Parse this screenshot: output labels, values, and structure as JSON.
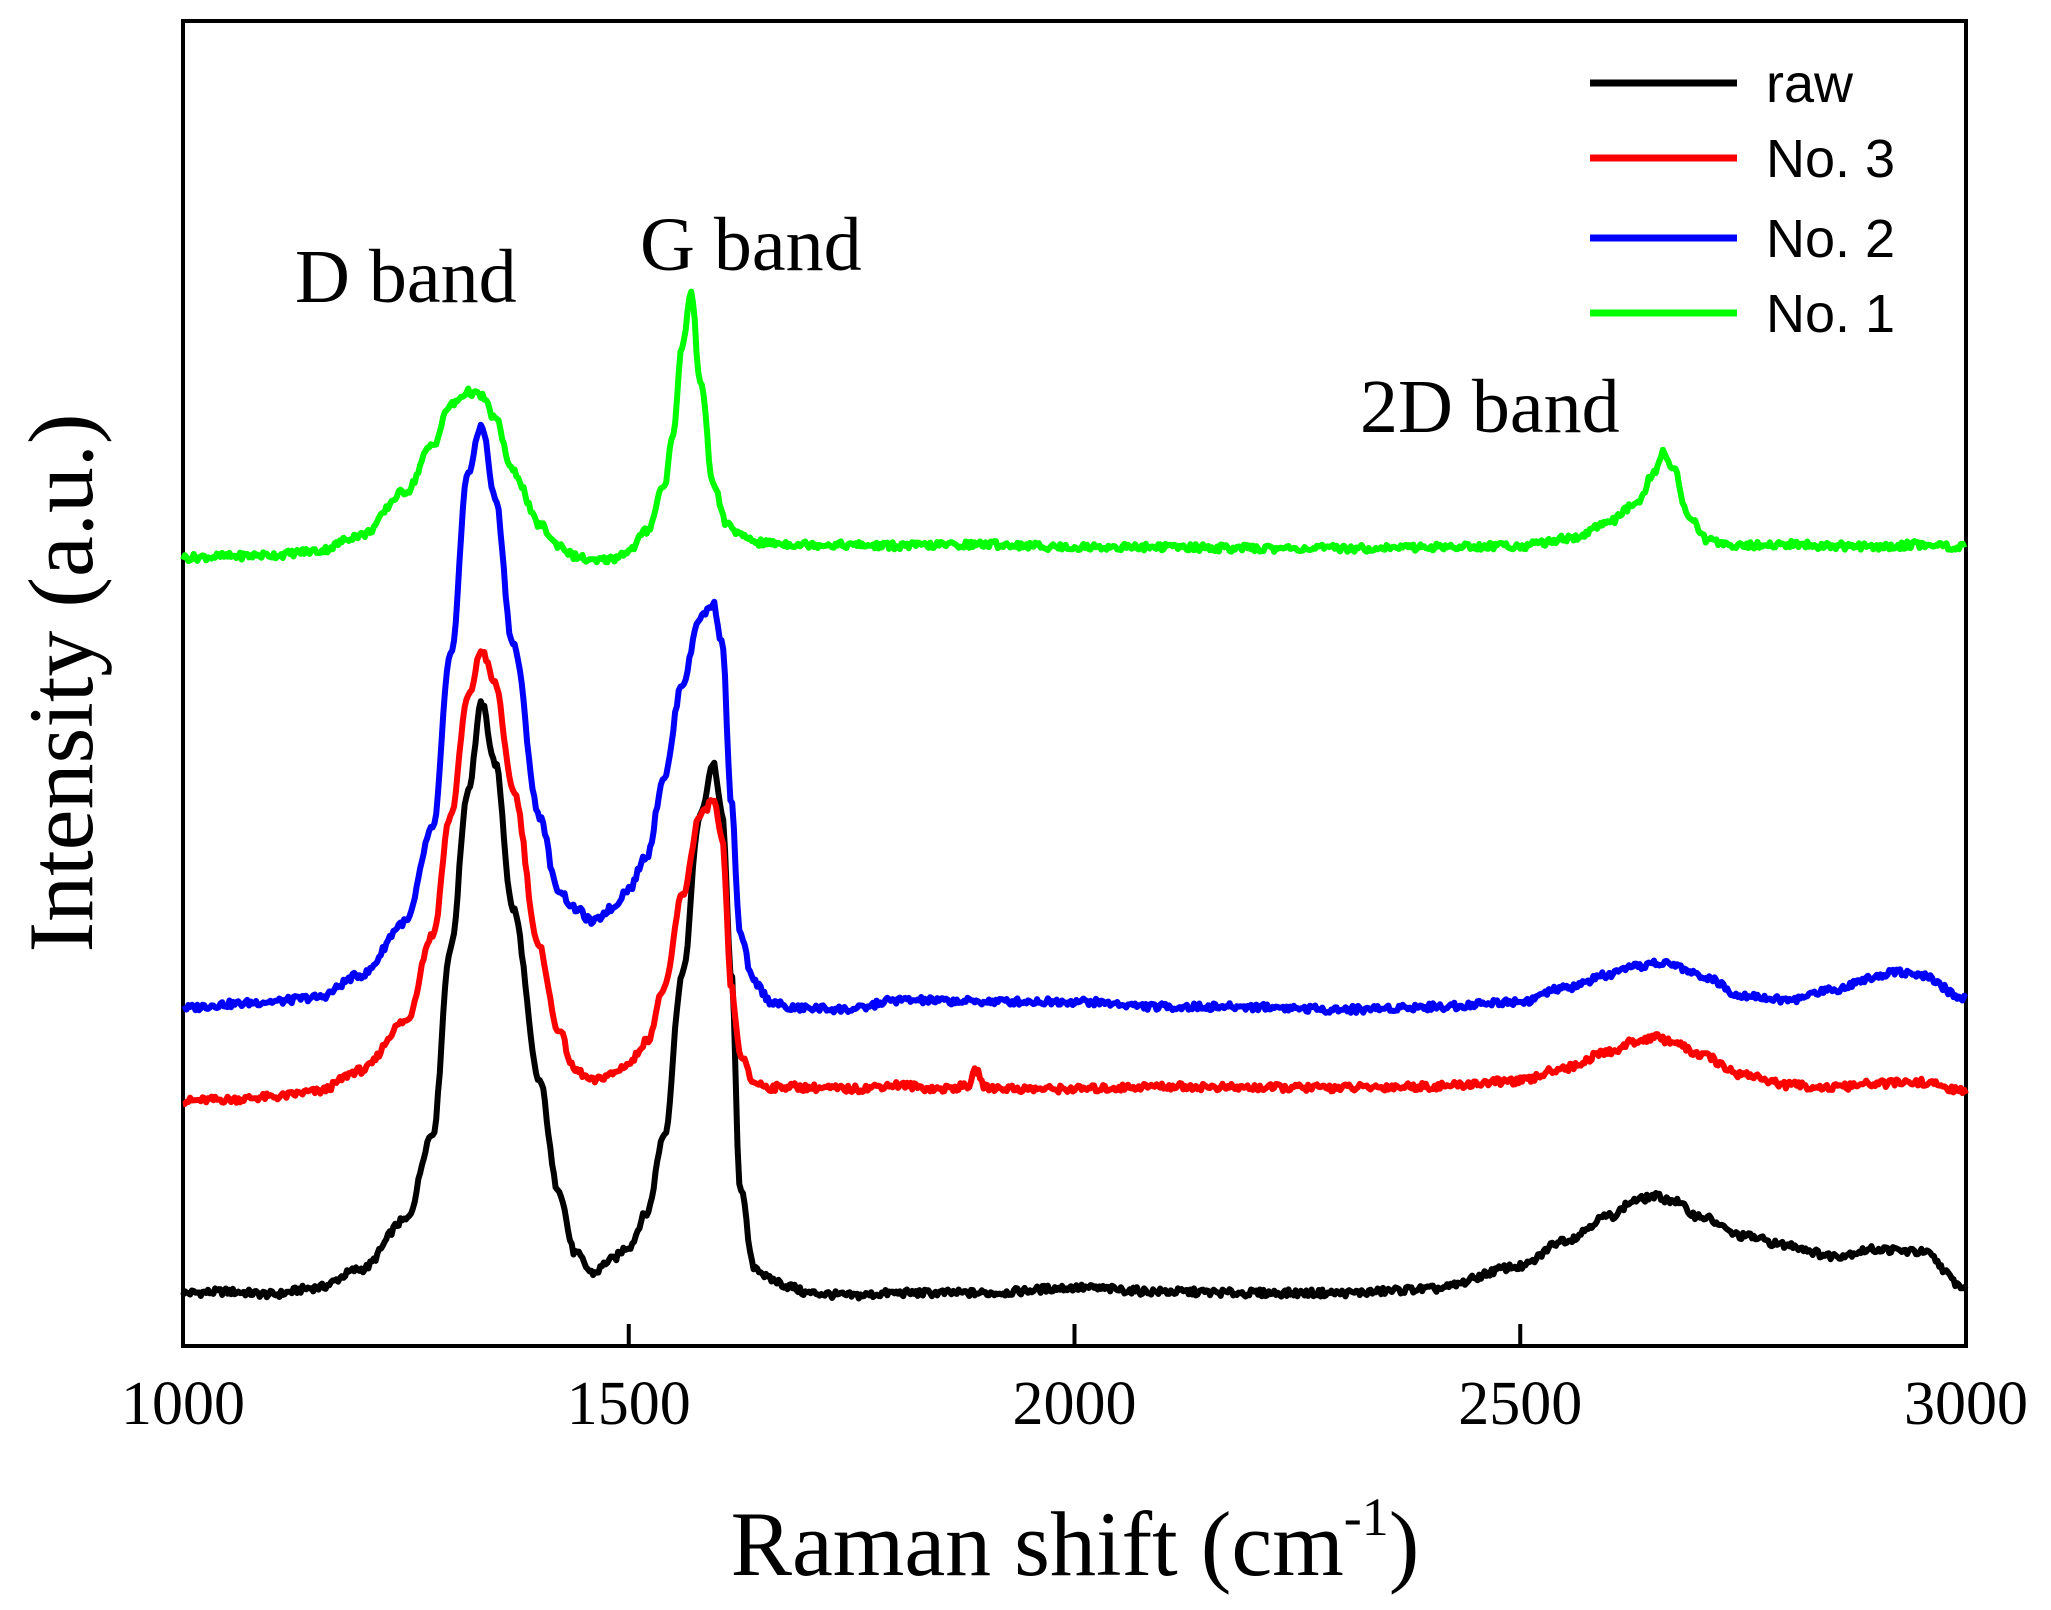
{
  "chart_data": {
    "type": "line",
    "title": "",
    "xlabel": "Raman shift (cm",
    "xlabel_sup": "-1",
    "xlabel_close": ")",
    "ylabel": "Intensity (a.u.)",
    "xlim": [
      1000,
      3000
    ],
    "ylim": [
      0,
      100
    ],
    "x_ticks": [
      1000,
      1500,
      2000,
      2500,
      3000
    ],
    "x_tick_labels": [
      "1000",
      "1500",
      "2000",
      "2500",
      "3000"
    ],
    "y_ticks_shown": false,
    "grid": false,
    "legend_position": "top-right",
    "annotations": [
      {
        "text": "D band",
        "x": 1280,
        "y": 84
      },
      {
        "text": "G band",
        "x": 1670,
        "y": 86
      },
      {
        "text": "2D band",
        "x": 2500,
        "y": 75
      }
    ],
    "series": [
      {
        "name": "raw",
        "color": "#000000",
        "x": [
          1000,
          1050,
          1100,
          1150,
          1200,
          1250,
          1280,
          1300,
          1320,
          1335,
          1350,
          1370,
          1400,
          1420,
          1440,
          1460,
          1480,
          1500,
          1520,
          1540,
          1560,
          1580,
          1595,
          1605,
          1615,
          1625,
          1640,
          1660,
          1680,
          1700,
          1750,
          1800,
          1900,
          2000,
          2100,
          2200,
          2300,
          2400,
          2500,
          2550,
          2600,
          2630,
          2650,
          2670,
          2700,
          2750,
          2800,
          2850,
          2900,
          2950,
          3000
        ],
        "y": [
          4.0,
          4.1,
          3.9,
          4.4,
          5.8,
          9.5,
          16,
          30,
          42,
          48.5,
          44,
          33,
          20,
          12,
          7,
          5.5,
          6.5,
          7.5,
          10,
          16,
          28,
          40,
          44,
          40,
          28,
          12,
          6,
          5,
          4.5,
          4,
          3.8,
          4,
          4,
          4.4,
          4.1,
          4,
          4,
          4.3,
          6,
          8,
          9.8,
          11,
          11.3,
          11,
          9.8,
          8.3,
          7.6,
          6.8,
          7.3,
          7.1,
          4.4
        ]
      },
      {
        "name": "No. 3",
        "color": "#ff0000",
        "x": [
          1000,
          1050,
          1100,
          1150,
          1200,
          1250,
          1280,
          1300,
          1320,
          1335,
          1350,
          1370,
          1400,
          1420,
          1440,
          1460,
          1480,
          1500,
          1520,
          1540,
          1560,
          1580,
          1595,
          1605,
          1615,
          1625,
          1640,
          1660,
          1680,
          1700,
          1750,
          1800,
          1850,
          1880,
          1890,
          1900,
          1950,
          2000,
          2100,
          2200,
          2300,
          2400,
          2500,
          2550,
          2600,
          2630,
          2650,
          2670,
          2700,
          2750,
          2800,
          2850,
          2900,
          2950,
          3000
        ],
        "y": [
          18.5,
          18.6,
          18.8,
          19.2,
          20.8,
          24.5,
          31,
          40,
          49,
          52.5,
          50,
          42,
          30,
          24,
          20.8,
          20,
          20.5,
          21.3,
          23,
          27,
          34,
          40,
          41.2,
          38,
          27,
          22,
          19.9,
          19.5,
          19.6,
          19.5,
          19.4,
          19.7,
          19.4,
          19.6,
          20.8,
          19.5,
          19.4,
          19.4,
          19.6,
          19.5,
          19.5,
          19.6,
          20,
          21,
          22.2,
          23,
          23.3,
          23,
          22,
          20.5,
          19.7,
          19.5,
          19.8,
          19.9,
          19.2
        ]
      },
      {
        "name": "No. 2",
        "color": "#0000ff",
        "x": [
          1000,
          1050,
          1100,
          1150,
          1200,
          1250,
          1280,
          1300,
          1320,
          1335,
          1350,
          1370,
          1400,
          1420,
          1440,
          1460,
          1480,
          1500,
          1520,
          1540,
          1560,
          1580,
          1595,
          1605,
          1615,
          1625,
          1640,
          1660,
          1680,
          1700,
          1750,
          1800,
          1900,
          2000,
          2100,
          2200,
          2300,
          2400,
          2500,
          2550,
          2600,
          2630,
          2650,
          2670,
          2700,
          2750,
          2800,
          2850,
          2900,
          2920,
          2950,
          3000
        ],
        "y": [
          25.5,
          25.8,
          26,
          26.3,
          28,
          32,
          39,
          52,
          66,
          69.5,
          64,
          53,
          40,
          34.5,
          33,
          32,
          33,
          34.5,
          37,
          43,
          50,
          55,
          56,
          53,
          41,
          31,
          27.5,
          26,
          25.5,
          25.5,
          25.4,
          26.1,
          26,
          26,
          25.6,
          25.6,
          25.4,
          25.6,
          26,
          27,
          28,
          28.6,
          28.9,
          28.8,
          28,
          26.5,
          26.1,
          26.9,
          27.9,
          28.3,
          27.9,
          26.2
        ]
      },
      {
        "name": "No. 1",
        "color": "#00ff00",
        "x": [
          1000,
          1050,
          1100,
          1150,
          1200,
          1250,
          1280,
          1300,
          1320,
          1335,
          1350,
          1370,
          1400,
          1420,
          1440,
          1460,
          1480,
          1500,
          1520,
          1540,
          1550,
          1560,
          1570,
          1580,
          1595,
          1610,
          1630,
          1650,
          1700,
          1800,
          1900,
          2000,
          2100,
          2200,
          2300,
          2400,
          2500,
          2560,
          2600,
          2630,
          2650,
          2660,
          2670,
          2690,
          2710,
          2750,
          2800,
          2850,
          2900,
          2950,
          3000
        ],
        "y": [
          59.5,
          59.6,
          59.7,
          60,
          61.2,
          64.5,
          68,
          71,
          72,
          71.7,
          70,
          66,
          62,
          60.5,
          59.6,
          59.2,
          59.4,
          60,
          61.5,
          65,
          69,
          75.5,
          79.5,
          73,
          65,
          62,
          61,
          60.6,
          60.5,
          60.4,
          60.5,
          60.3,
          60.3,
          60.2,
          60.2,
          60.3,
          60.4,
          61,
          62.2,
          63.5,
          65.8,
          67.4,
          66.5,
          62.5,
          60.8,
          60.4,
          60.5,
          60.4,
          60.3,
          60.5,
          60.3
        ]
      }
    ]
  }
}
